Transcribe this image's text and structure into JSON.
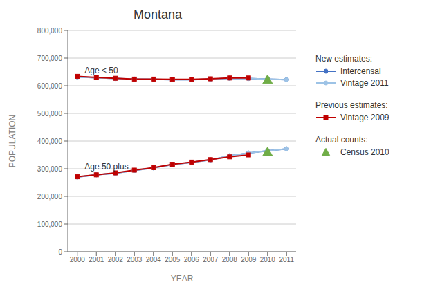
{
  "chart_data": {
    "type": "line",
    "title": "Montana",
    "x_label": "YEAR",
    "y_label": "POPULATION",
    "x": [
      2000,
      2001,
      2002,
      2003,
      2004,
      2005,
      2006,
      2007,
      2008,
      2009,
      2010,
      2011
    ],
    "xlim": [
      1999.5,
      2011.5
    ],
    "xticks": [
      2000,
      2001,
      2002,
      2003,
      2004,
      2005,
      2006,
      2007,
      2008,
      2009,
      2010,
      2011
    ],
    "ylim": [
      0,
      800000
    ],
    "yticks": [
      0,
      {
        "value": 100000,
        "label": "100,000"
      },
      {
        "value": 200000,
        "label": "200,000"
      },
      {
        "value": 300000,
        "label": "300,000"
      },
      {
        "value": 400000,
        "label": "400,000"
      },
      {
        "value": 500000,
        "label": "500,000"
      },
      {
        "value": 600000,
        "label": "600,000"
      },
      {
        "value": 700000,
        "label": "700,000"
      },
      {
        "value": 800000,
        "label": "800,000"
      }
    ],
    "grid": true,
    "legend": "right",
    "annotations": [
      {
        "text": "Age < 50",
        "x": 2000.2,
        "y": 655000
      },
      {
        "text": "Age 50 plus",
        "x": 2000.2,
        "y": 307000
      }
    ],
    "series": [
      {
        "name": "Intercensal",
        "group": "New estimates:",
        "color": "#4472C4",
        "marker": "circle",
        "line_style": "solid",
        "values": [
          632000,
          629000,
          626000,
          624000,
          623000,
          622000,
          622000,
          624000,
          627000,
          626000,
          624000,
          622000
        ]
      },
      {
        "name": "Vintage 2011",
        "group": "New estimates:",
        "color": "#9DC3E6",
        "marker": "circle",
        "line_style": "solid",
        "values": [
          632000,
          629000,
          626000,
          624000,
          623000,
          622000,
          622000,
          624000,
          627000,
          626000,
          624000,
          622000
        ]
      },
      {
        "name": "Vintage 2009",
        "group": "Previous estimates:",
        "color": "#C00000",
        "marker": "square",
        "line_style": "solid",
        "values": [
          634000,
          630000,
          627000,
          624000,
          624000,
          623000,
          623000,
          625000,
          628000,
          628000,
          null,
          null
        ]
      },
      {
        "name": "Census 2010",
        "group": "Actual counts:",
        "color": "#70AD47",
        "marker": "triangle",
        "line_style": "none",
        "values": [
          null,
          null,
          null,
          null,
          null,
          null,
          null,
          null,
          null,
          null,
          622000,
          null
        ]
      },
      {
        "name": "Intercensal",
        "group": "New estimates:",
        "color": "#4472C4",
        "marker": "circle",
        "line_style": "solid",
        "values": [
          270000,
          278000,
          284000,
          294000,
          303000,
          315000,
          323000,
          332000,
          347000,
          357000,
          365000,
          372000
        ]
      },
      {
        "name": "Vintage 2011",
        "group": "New estimates:",
        "color": "#9DC3E6",
        "marker": "circle",
        "line_style": "solid",
        "values": [
          270000,
          278000,
          284000,
          294000,
          303000,
          315000,
          323000,
          332000,
          347000,
          357000,
          365000,
          372000
        ]
      },
      {
        "name": "Vintage 2009",
        "group": "Previous estimates:",
        "color": "#C00000",
        "marker": "square",
        "line_style": "solid",
        "values": [
          271000,
          278000,
          285000,
          295000,
          304000,
          316000,
          324000,
          333000,
          343000,
          350000,
          null,
          null
        ]
      },
      {
        "name": "Census 2010",
        "group": "Actual counts:",
        "color": "#70AD47",
        "marker": "triangle",
        "line_style": "none",
        "values": [
          null,
          null,
          null,
          null,
          null,
          null,
          null,
          null,
          null,
          null,
          361000,
          null
        ]
      }
    ]
  }
}
